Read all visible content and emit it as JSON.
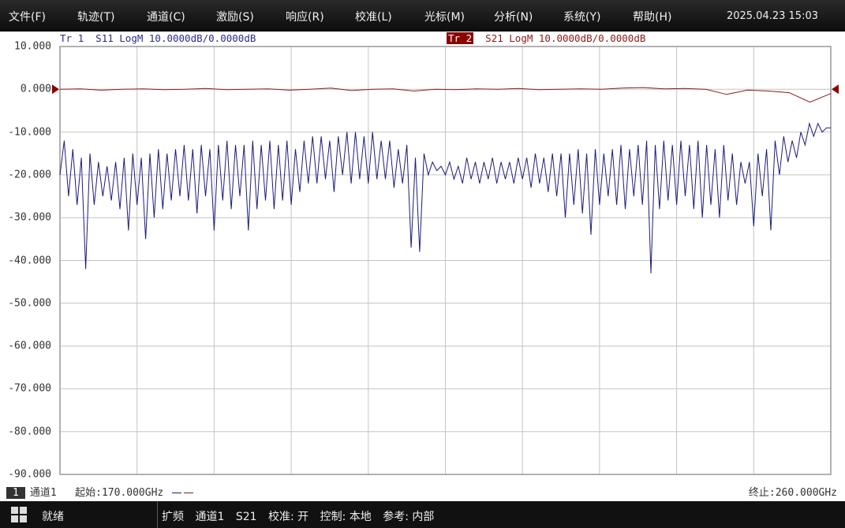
{
  "menu": {
    "items": [
      "文件(F)",
      "轨迹(T)",
      "通道(C)",
      "激励(S)",
      "响应(R)",
      "校准(L)",
      "光标(M)",
      "分析(N)",
      "系统(Y)",
      "帮助(H)"
    ],
    "datetime": "2025.04.23 15:03"
  },
  "traces": {
    "tr1": {
      "label": "Tr 1",
      "desc": "S11 LogM 10.0000dB/0.0000dB",
      "color": "#1c1c7a"
    },
    "tr2": {
      "label": "Tr 2",
      "desc": "S21 LogM 10.0000dB/0.0000dB",
      "color": "#8b1a1a"
    }
  },
  "footer": {
    "channel_num": "1",
    "channel_name": "通道1",
    "start": "起始:170.000GHz",
    "stop": "终止:260.000GHz"
  },
  "status": {
    "ready": "就绪",
    "items": [
      "扩频",
      "通道1",
      "S21",
      "校准: 开",
      "控制: 本地",
      "参考: 内部"
    ]
  },
  "chart_data": {
    "type": "line",
    "xlim": [
      170,
      260
    ],
    "xunit": "GHz",
    "ylim": [
      -90,
      10
    ],
    "ytick_labels": [
      "10.000",
      "0.000",
      "-10.000",
      "-20.000",
      "-30.000",
      "-40.000",
      "-50.000",
      "-60.000",
      "-70.000",
      "-80.000",
      "-90.000"
    ],
    "yticks": [
      10,
      0,
      -10,
      -20,
      -30,
      -40,
      -50,
      -60,
      -70,
      -80,
      -90
    ],
    "x_divisions": 10,
    "grid": true,
    "reference_level": 0,
    "series": [
      {
        "name": "S11",
        "color": "#1c1c7a",
        "x_start": 170,
        "x_stop": 260,
        "values": [
          -20,
          -12,
          -25,
          -14,
          -27,
          -16,
          -42,
          -15,
          -27,
          -17,
          -25,
          -18,
          -26,
          -17,
          -28,
          -16,
          -33,
          -15,
          -27,
          -16,
          -35,
          -15,
          -30,
          -14,
          -28,
          -15,
          -26,
          -14,
          -25,
          -13,
          -26,
          -14,
          -29,
          -13,
          -25,
          -14,
          -33,
          -13,
          -26,
          -12,
          -28,
          -13,
          -25,
          -13,
          -33,
          -12,
          -28,
          -13,
          -26,
          -12,
          -28,
          -13,
          -26,
          -12,
          -27,
          -14,
          -24,
          -12,
          -22,
          -11,
          -22,
          -11,
          -21,
          -12,
          -24,
          -11,
          -20,
          -10,
          -22,
          -10,
          -21,
          -11,
          -22,
          -10,
          -21,
          -12,
          -21,
          -12,
          -23,
          -14,
          -22,
          -13,
          -37,
          -16,
          -38,
          -15,
          -20,
          -17,
          -19,
          -18,
          -20,
          -17,
          -21,
          -18,
          -22,
          -16,
          -21,
          -17,
          -22,
          -17,
          -21,
          -16,
          -22,
          -17,
          -21,
          -17,
          -22,
          -16,
          -21,
          -16,
          -23,
          -15,
          -22,
          -16,
          -24,
          -15,
          -25,
          -15,
          -30,
          -15,
          -27,
          -14,
          -29,
          -15,
          -34,
          -14,
          -27,
          -15,
          -25,
          -14,
          -27,
          -13,
          -28,
          -14,
          -25,
          -13,
          -27,
          -12,
          -43,
          -13,
          -28,
          -12,
          -26,
          -13,
          -27,
          -12,
          -25,
          -13,
          -28,
          -12,
          -30,
          -13,
          -27,
          -14,
          -30,
          -13,
          -26,
          -15,
          -27,
          -17,
          -22,
          -17,
          -32,
          -15,
          -25,
          -14,
          -33,
          -12,
          -20,
          -11,
          -17,
          -12,
          -16,
          -10,
          -13,
          -8,
          -11,
          -8,
          -10,
          -9,
          -9
        ]
      },
      {
        "name": "S21",
        "color": "#8b1a1a",
        "x_start": 170,
        "x_stop": 260,
        "values": [
          0.0,
          0.1,
          -0.2,
          0.0,
          0.1,
          -0.1,
          0.0,
          0.2,
          -0.1,
          0.0,
          0.1,
          -0.2,
          0.0,
          0.3,
          -0.3,
          0.0,
          0.1,
          -0.4,
          0.0,
          -0.1,
          0.1,
          0.0,
          0.2,
          -0.1,
          0.0,
          0.1,
          0.0,
          0.3,
          0.4,
          0.1,
          0.2,
          0.0,
          -1.2,
          -0.2,
          -0.4,
          -0.8,
          -3.0,
          -1.0
        ]
      }
    ]
  }
}
